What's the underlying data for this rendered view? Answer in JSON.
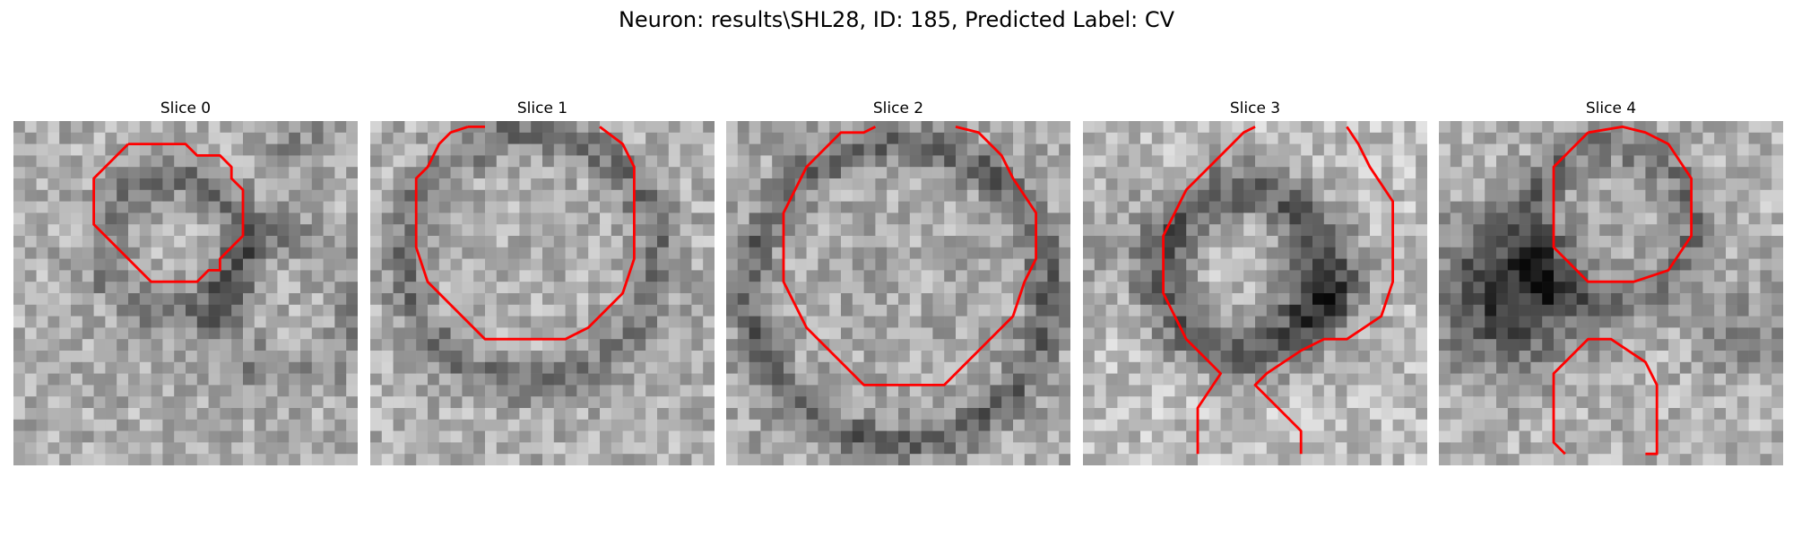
{
  "figure": {
    "title": "Neuron: results\\SHL28, ID: 185, Predicted Label: CV"
  },
  "panels": [
    {
      "title": "Slice 0"
    },
    {
      "title": "Slice 1"
    },
    {
      "title": "Slice 2"
    },
    {
      "title": "Slice 3"
    },
    {
      "title": "Slice 4"
    }
  ],
  "style": {
    "contour_color": "#ff0000",
    "colormap": "grayscale"
  }
}
